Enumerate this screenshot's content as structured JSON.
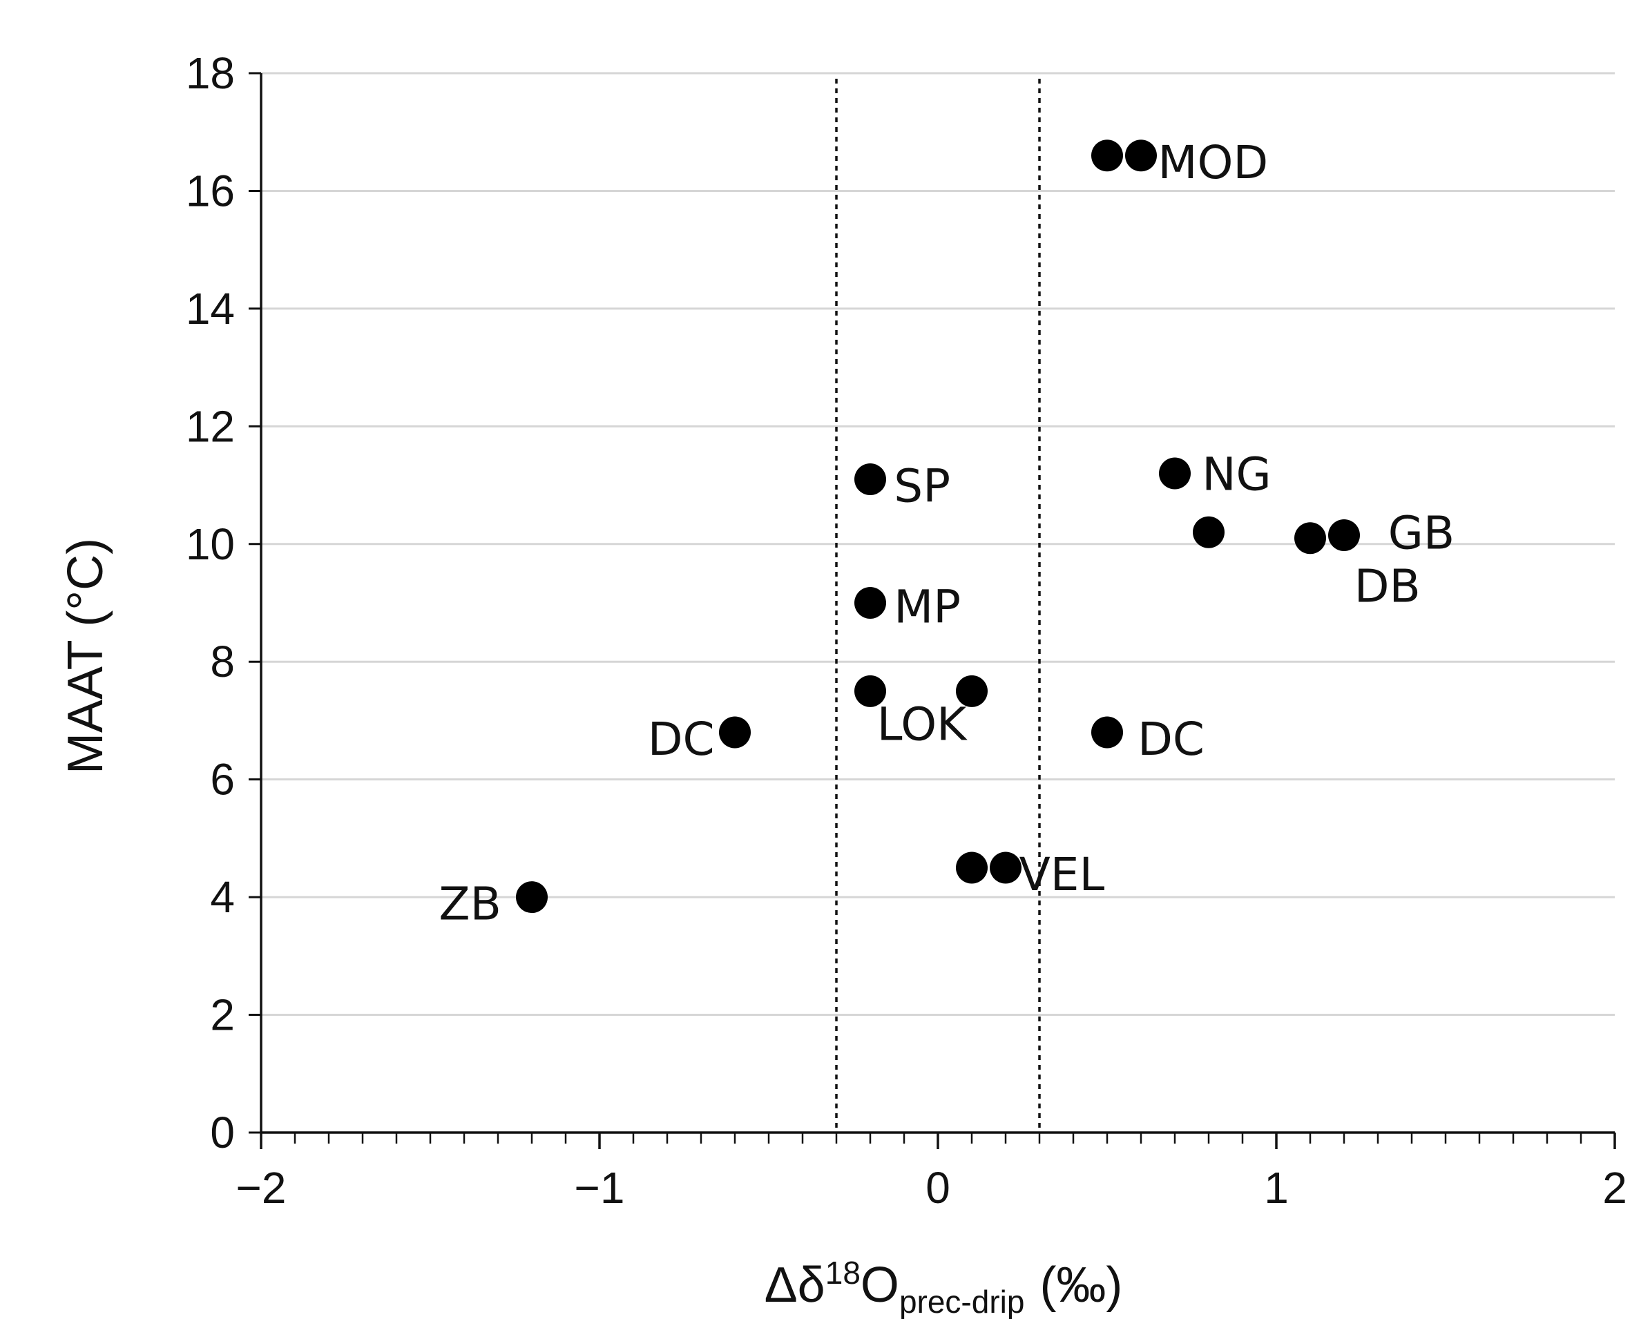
{
  "chart_data": {
    "type": "scatter",
    "title": "",
    "xlabel": {
      "prefix": "Δδ",
      "sup": "18",
      "main": "O",
      "sub": "prec-drip",
      "unit": "(‰)"
    },
    "ylabel": "MAAT  (°C)",
    "xlim": [
      -2,
      2
    ],
    "ylim": [
      0,
      18
    ],
    "x_major_ticks": [
      -2,
      -1,
      0,
      1,
      2
    ],
    "x_tick_labels": [
      "−2",
      "−1",
      "0",
      "1",
      "2"
    ],
    "x_minor_step": 0.1,
    "y_ticks": [
      0,
      2,
      4,
      6,
      8,
      10,
      12,
      14,
      16,
      18
    ],
    "y_tick_labels": [
      "0",
      "2",
      "4",
      "6",
      "8",
      "10",
      "12",
      "14",
      "16",
      "18"
    ],
    "grid": "horizontal",
    "reference_lines": [
      -0.3,
      0.3
    ],
    "points": [
      {
        "x": 0.5,
        "y": 16.6
      },
      {
        "x": 0.6,
        "y": 16.6
      },
      {
        "x": 0.7,
        "y": 11.2
      },
      {
        "x": 0.8,
        "y": 10.2
      },
      {
        "x": 1.1,
        "y": 10.1
      },
      {
        "x": 1.2,
        "y": 10.15
      },
      {
        "x": -0.2,
        "y": 11.1
      },
      {
        "x": -0.2,
        "y": 9.0
      },
      {
        "x": -0.2,
        "y": 7.5
      },
      {
        "x": 0.1,
        "y": 7.5
      },
      {
        "x": -0.6,
        "y": 6.8
      },
      {
        "x": 0.5,
        "y": 6.8
      },
      {
        "x": 0.1,
        "y": 4.5
      },
      {
        "x": 0.2,
        "y": 4.5
      },
      {
        "x": -1.2,
        "y": 4.0
      }
    ],
    "labels": [
      {
        "text": "MOD",
        "x": 0.65,
        "y": 16.5,
        "anchor": "start"
      },
      {
        "text": "NG",
        "x": 0.78,
        "y": 11.2,
        "anchor": "start"
      },
      {
        "text": "GB",
        "x": 1.33,
        "y": 10.2,
        "anchor": "start"
      },
      {
        "text": "DB",
        "x": 1.23,
        "y": 9.3,
        "anchor": "start"
      },
      {
        "text": "SP",
        "x": -0.13,
        "y": 11.0,
        "anchor": "start"
      },
      {
        "text": "MP",
        "x": -0.13,
        "y": 8.95,
        "anchor": "start"
      },
      {
        "text": "LOK",
        "x": -0.18,
        "y": 6.95,
        "anchor": "start"
      },
      {
        "text": "DC",
        "x": -0.66,
        "y": 6.7,
        "anchor": "end"
      },
      {
        "text": "DC",
        "x": 0.59,
        "y": 6.7,
        "anchor": "start"
      },
      {
        "text": "VEL",
        "x": 0.24,
        "y": 4.4,
        "anchor": "start"
      },
      {
        "text": "ZB",
        "x": -1.29,
        "y": 3.9,
        "anchor": "end"
      }
    ]
  }
}
